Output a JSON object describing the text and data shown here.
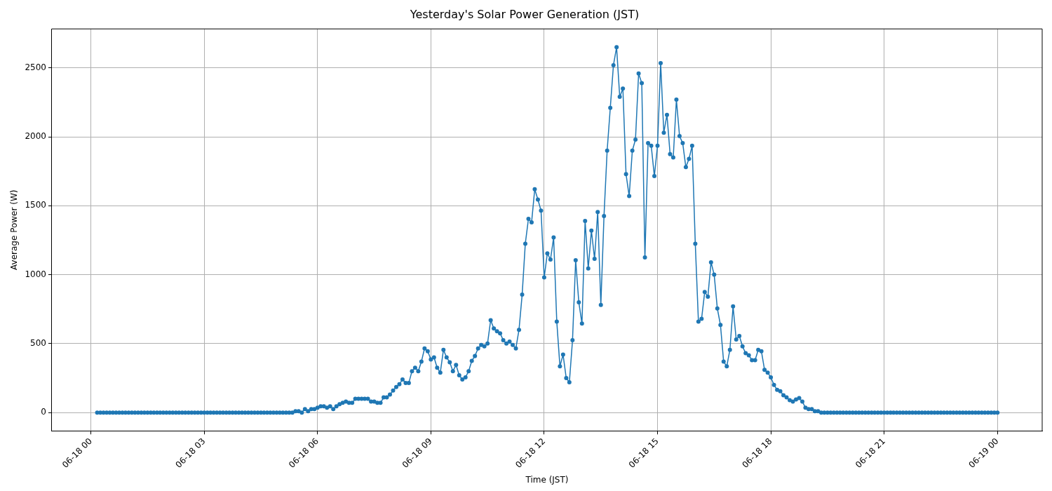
{
  "chart_data": {
    "type": "line",
    "title": "Yesterday's Solar Power Generation (JST)",
    "xlabel": "Time (JST)",
    "ylabel": "Average Power (W)",
    "xlim": [
      "--06-17T22:58",
      "--06-19T01:11"
    ],
    "ylim": [
      -133,
      2783
    ],
    "xticks": [
      {
        "value": "--06-18T00:00",
        "label": "06-18 00"
      },
      {
        "value": "--06-18T03:00",
        "label": "06-18 03"
      },
      {
        "value": "--06-18T06:00",
        "label": "06-18 06"
      },
      {
        "value": "--06-18T09:00",
        "label": "06-18 09"
      },
      {
        "value": "--06-18T12:00",
        "label": "06-18 12"
      },
      {
        "value": "--06-18T15:00",
        "label": "06-18 15"
      },
      {
        "value": "--06-18T18:00",
        "label": "06-18 18"
      },
      {
        "value": "--06-18T21:00",
        "label": "06-18 21"
      },
      {
        "value": "--06-19T00:00",
        "label": "06-19 00"
      }
    ],
    "yticks": [
      0,
      500,
      1000,
      1500,
      2000,
      2500
    ],
    "grid": true,
    "legend": false,
    "marker": "circle",
    "line_style": "solid",
    "series": [
      {
        "color": "#1f77b4",
        "x": [
          "--06-18T00:10",
          "--06-18T00:15",
          "--06-18T00:20",
          "--06-18T00:25",
          "--06-18T00:30",
          "--06-18T00:35",
          "--06-18T00:40",
          "--06-18T00:45",
          "--06-18T00:50",
          "--06-18T00:55",
          "--06-18T01:00",
          "--06-18T01:05",
          "--06-18T01:10",
          "--06-18T01:15",
          "--06-18T01:20",
          "--06-18T01:25",
          "--06-18T01:30",
          "--06-18T01:35",
          "--06-18T01:40",
          "--06-18T01:45",
          "--06-18T01:50",
          "--06-18T01:55",
          "--06-18T02:00",
          "--06-18T02:05",
          "--06-18T02:10",
          "--06-18T02:15",
          "--06-18T02:20",
          "--06-18T02:25",
          "--06-18T02:30",
          "--06-18T02:35",
          "--06-18T02:40",
          "--06-18T02:45",
          "--06-18T02:50",
          "--06-18T02:55",
          "--06-18T03:00",
          "--06-18T03:05",
          "--06-18T03:10",
          "--06-18T03:15",
          "--06-18T03:20",
          "--06-18T03:25",
          "--06-18T03:30",
          "--06-18T03:35",
          "--06-18T03:40",
          "--06-18T03:45",
          "--06-18T03:50",
          "--06-18T03:55",
          "--06-18T04:00",
          "--06-18T04:05",
          "--06-18T04:10",
          "--06-18T04:15",
          "--06-18T04:20",
          "--06-18T04:25",
          "--06-18T04:30",
          "--06-18T04:35",
          "--06-18T04:40",
          "--06-18T04:45",
          "--06-18T04:50",
          "--06-18T04:55",
          "--06-18T05:00",
          "--06-18T05:05",
          "--06-18T05:10",
          "--06-18T05:15",
          "--06-18T05:20",
          "--06-18T05:25",
          "--06-18T05:30",
          "--06-18T05:35",
          "--06-18T05:40",
          "--06-18T05:45",
          "--06-18T05:50",
          "--06-18T05:55",
          "--06-18T06:00",
          "--06-18T06:05",
          "--06-18T06:10",
          "--06-18T06:15",
          "--06-18T06:20",
          "--06-18T06:25",
          "--06-18T06:30",
          "--06-18T06:35",
          "--06-18T06:40",
          "--06-18T06:45",
          "--06-18T06:50",
          "--06-18T06:55",
          "--06-18T07:00",
          "--06-18T07:05",
          "--06-18T07:10",
          "--06-18T07:15",
          "--06-18T07:20",
          "--06-18T07:25",
          "--06-18T07:30",
          "--06-18T07:35",
          "--06-18T07:40",
          "--06-18T07:45",
          "--06-18T07:50",
          "--06-18T07:55",
          "--06-18T08:00",
          "--06-18T08:05",
          "--06-18T08:10",
          "--06-18T08:15",
          "--06-18T08:20",
          "--06-18T08:25",
          "--06-18T08:30",
          "--06-18T08:35",
          "--06-18T08:40",
          "--06-18T08:45",
          "--06-18T08:50",
          "--06-18T08:55",
          "--06-18T09:00",
          "--06-18T09:05",
          "--06-18T09:10",
          "--06-18T09:15",
          "--06-18T09:20",
          "--06-18T09:25",
          "--06-18T09:30",
          "--06-18T09:35",
          "--06-18T09:40",
          "--06-18T09:45",
          "--06-18T09:50",
          "--06-18T09:55",
          "--06-18T10:00",
          "--06-18T10:05",
          "--06-18T10:10",
          "--06-18T10:15",
          "--06-18T10:20",
          "--06-18T10:25",
          "--06-18T10:30",
          "--06-18T10:35",
          "--06-18T10:40",
          "--06-18T10:45",
          "--06-18T10:50",
          "--06-18T10:55",
          "--06-18T11:00",
          "--06-18T11:05",
          "--06-18T11:10",
          "--06-18T11:15",
          "--06-18T11:20",
          "--06-18T11:25",
          "--06-18T11:30",
          "--06-18T11:35",
          "--06-18T11:40",
          "--06-18T11:45",
          "--06-18T11:50",
          "--06-18T11:55",
          "--06-18T12:00",
          "--06-18T12:05",
          "--06-18T12:10",
          "--06-18T12:15",
          "--06-18T12:20",
          "--06-18T12:25",
          "--06-18T12:30",
          "--06-18T12:35",
          "--06-18T12:40",
          "--06-18T12:45",
          "--06-18T12:50",
          "--06-18T12:55",
          "--06-18T13:00",
          "--06-18T13:05",
          "--06-18T13:10",
          "--06-18T13:15",
          "--06-18T13:20",
          "--06-18T13:25",
          "--06-18T13:30",
          "--06-18T13:35",
          "--06-18T13:40",
          "--06-18T13:45",
          "--06-18T13:50",
          "--06-18T13:55",
          "--06-18T14:00",
          "--06-18T14:05",
          "--06-18T14:10",
          "--06-18T14:15",
          "--06-18T14:20",
          "--06-18T14:25",
          "--06-18T14:30",
          "--06-18T14:35",
          "--06-18T14:40",
          "--06-18T14:45",
          "--06-18T14:50",
          "--06-18T14:55",
          "--06-18T15:00",
          "--06-18T15:05",
          "--06-18T15:10",
          "--06-18T15:15",
          "--06-18T15:20",
          "--06-18T15:25",
          "--06-18T15:30",
          "--06-18T15:35",
          "--06-18T15:40",
          "--06-18T15:45",
          "--06-18T15:50",
          "--06-18T15:55",
          "--06-18T16:00",
          "--06-18T16:05",
          "--06-18T16:10",
          "--06-18T16:15",
          "--06-18T16:20",
          "--06-18T16:25",
          "--06-18T16:30",
          "--06-18T16:35",
          "--06-18T16:40",
          "--06-18T16:45",
          "--06-18T16:50",
          "--06-18T16:55",
          "--06-18T17:00",
          "--06-18T17:05",
          "--06-18T17:10",
          "--06-18T17:15",
          "--06-18T17:20",
          "--06-18T17:25",
          "--06-18T17:30",
          "--06-18T17:35",
          "--06-18T17:40",
          "--06-18T17:45",
          "--06-18T17:50",
          "--06-18T17:55",
          "--06-18T18:00",
          "--06-18T18:05",
          "--06-18T18:10",
          "--06-18T18:15",
          "--06-18T18:20",
          "--06-18T18:25",
          "--06-18T18:30",
          "--06-18T18:35",
          "--06-18T18:40",
          "--06-18T18:45",
          "--06-18T18:50",
          "--06-18T18:55",
          "--06-18T19:00",
          "--06-18T19:05",
          "--06-18T19:10",
          "--06-18T19:15",
          "--06-18T19:20",
          "--06-18T19:25",
          "--06-18T19:30",
          "--06-18T19:35",
          "--06-18T19:40",
          "--06-18T19:45",
          "--06-18T19:50",
          "--06-18T19:55",
          "--06-18T20:00",
          "--06-18T20:05",
          "--06-18T20:10",
          "--06-18T20:15",
          "--06-18T20:20",
          "--06-18T20:25",
          "--06-18T20:30",
          "--06-18T20:35",
          "--06-18T20:40",
          "--06-18T20:45",
          "--06-18T20:50",
          "--06-18T20:55",
          "--06-18T21:00",
          "--06-18T21:05",
          "--06-18T21:10",
          "--06-18T21:15",
          "--06-18T21:20",
          "--06-18T21:25",
          "--06-18T21:30",
          "--06-18T21:35",
          "--06-18T21:40",
          "--06-18T21:45",
          "--06-18T21:50",
          "--06-18T21:55",
          "--06-18T22:00",
          "--06-18T22:05",
          "--06-18T22:10",
          "--06-18T22:15",
          "--06-18T22:20",
          "--06-18T22:25",
          "--06-18T22:30",
          "--06-18T22:35",
          "--06-18T22:40",
          "--06-18T22:45",
          "--06-18T22:50",
          "--06-18T22:55",
          "--06-18T23:00",
          "--06-18T23:05",
          "--06-18T23:10",
          "--06-18T23:15",
          "--06-18T23:20",
          "--06-18T23:25",
          "--06-18T23:30",
          "--06-18T23:35",
          "--06-18T23:40",
          "--06-18T23:45",
          "--06-18T23:50",
          "--06-18T23:55",
          "--06-19T00:00"
        ],
        "values": [
          0,
          0,
          0,
          0,
          0,
          0,
          0,
          0,
          0,
          0,
          0,
          0,
          0,
          0,
          0,
          0,
          0,
          0,
          0,
          0,
          0,
          0,
          0,
          0,
          0,
          0,
          0,
          0,
          0,
          0,
          0,
          0,
          0,
          0,
          0,
          0,
          0,
          0,
          0,
          0,
          0,
          0,
          0,
          0,
          0,
          0,
          0,
          0,
          0,
          0,
          0,
          0,
          0,
          0,
          0,
          0,
          0,
          0,
          0,
          0,
          0,
          0,
          0,
          10,
          10,
          0,
          25,
          10,
          25,
          25,
          35,
          45,
          45,
          35,
          45,
          25,
          45,
          60,
          70,
          80,
          70,
          70,
          100,
          100,
          100,
          100,
          100,
          80,
          80,
          70,
          70,
          110,
          110,
          130,
          160,
          185,
          205,
          240,
          215,
          215,
          300,
          325,
          300,
          370,
          465,
          445,
          385,
          400,
          325,
          290,
          455,
          400,
          365,
          300,
          345,
          270,
          240,
          255,
          300,
          375,
          410,
          465,
          490,
          480,
          500,
          670,
          610,
          590,
          575,
          525,
          500,
          515,
          490,
          465,
          600,
          855,
          1225,
          1405,
          1380,
          1620,
          1545,
          1465,
          980,
          1155,
          1110,
          1270,
          660,
          335,
          420,
          250,
          220,
          525,
          1105,
          800,
          645,
          1390,
          1045,
          1320,
          1115,
          1455,
          780,
          1425,
          1900,
          2210,
          2520,
          2650,
          2290,
          2350,
          1730,
          1570,
          1900,
          1980,
          2460,
          2390,
          1125,
          1955,
          1935,
          1715,
          1935,
          2535,
          2030,
          2160,
          1875,
          1850,
          2270,
          2005,
          1955,
          1780,
          1840,
          1935,
          1225,
          660,
          680,
          875,
          840,
          1090,
          1000,
          755,
          635,
          370,
          335,
          455,
          770,
          530,
          555,
          480,
          430,
          415,
          380,
          380,
          455,
          445,
          310,
          290,
          255,
          200,
          165,
          155,
          125,
          110,
          90,
          80,
          95,
          105,
          80,
          35,
          25,
          25,
          10,
          10,
          0,
          0,
          0,
          0,
          0,
          0,
          0,
          0,
          0,
          0,
          0,
          0,
          0,
          0,
          0,
          0,
          0,
          0,
          0,
          0,
          0,
          0,
          0,
          0,
          0,
          0,
          0,
          0,
          0,
          0,
          0,
          0,
          0,
          0,
          0,
          0,
          0,
          0,
          0,
          0,
          0,
          0,
          0,
          0,
          0,
          0,
          0,
          0,
          0,
          0,
          0,
          0,
          0,
          0,
          0,
          0,
          0
        ]
      }
    ]
  }
}
